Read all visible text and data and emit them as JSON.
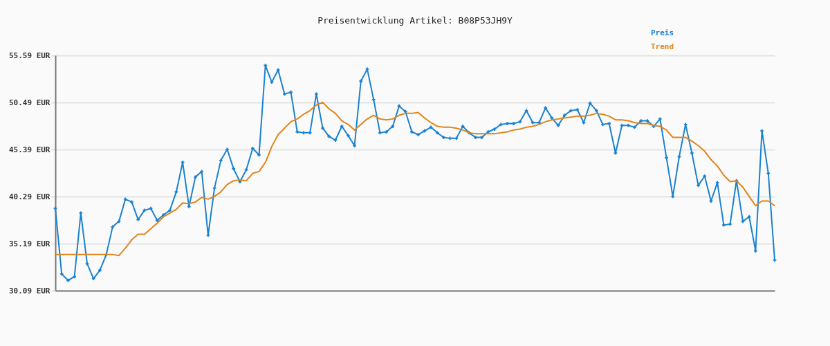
{
  "chart_data": {
    "type": "line",
    "title": "Preisentwicklung Artikel: B08P53JH9Y",
    "categories": [
      null,
      null,
      null,
      null,
      null,
      null,
      null,
      null,
      null,
      null,
      null,
      null,
      null,
      null,
      null,
      null,
      null,
      null,
      null,
      null,
      null,
      null,
      null,
      null,
      null,
      null,
      null,
      null,
      null,
      null,
      null,
      null,
      null,
      null,
      null,
      null,
      null,
      null,
      null,
      null,
      null,
      null,
      null,
      null,
      null,
      null,
      null,
      null,
      null,
      null,
      null,
      null,
      null,
      null,
      null,
      null,
      null,
      null,
      null,
      null,
      null,
      null,
      null,
      null,
      null,
      null,
      null,
      null,
      null,
      null,
      null,
      null,
      null,
      null,
      null,
      null,
      null,
      null,
      null,
      null,
      null,
      null,
      null,
      null,
      null,
      null,
      null,
      null,
      null,
      null,
      null,
      null,
      null,
      null,
      null,
      null,
      null,
      null,
      null,
      null,
      null,
      null,
      null,
      null,
      null,
      null,
      null,
      null,
      null,
      null,
      null,
      null,
      null,
      null
    ],
    "series": [
      {
        "name": "Preis",
        "color": "#1b82cf",
        "marker": "cross",
        "values": [
          39.0,
          31.9,
          31.2,
          31.6,
          38.5,
          33.0,
          31.4,
          32.3,
          34.0,
          37.0,
          37.6,
          40.0,
          39.7,
          37.8,
          38.8,
          39.0,
          37.7,
          38.3,
          38.8,
          40.8,
          44.0,
          39.2,
          42.4,
          43.0,
          36.1,
          41.2,
          44.2,
          45.4,
          43.3,
          41.9,
          43.2,
          45.5,
          44.8,
          54.5,
          52.7,
          54.0,
          51.4,
          51.6,
          47.3,
          47.2,
          47.2,
          51.4,
          47.7,
          46.8,
          46.4,
          47.9,
          46.9,
          45.8,
          52.8,
          54.1,
          50.8,
          47.2,
          47.3,
          47.9,
          50.1,
          49.5,
          47.3,
          47.0,
          47.4,
          47.8,
          47.2,
          46.7,
          46.6,
          46.6,
          47.9,
          47.2,
          46.7,
          46.7,
          47.3,
          47.6,
          48.1,
          48.2,
          48.2,
          48.4,
          49.6,
          48.3,
          48.3,
          49.9,
          48.8,
          48.0,
          49.1,
          49.6,
          49.7,
          48.3,
          50.4,
          49.6,
          48.1,
          48.2,
          45.0,
          48.0,
          48.0,
          47.8,
          48.5,
          48.5,
          47.9,
          48.7,
          44.5,
          40.3,
          44.6,
          48.1,
          45.0,
          41.5,
          42.5,
          39.8,
          41.8,
          37.2,
          37.3,
          42.0,
          37.6,
          38.1,
          34.4,
          47.4,
          42.8,
          33.4
        ]
      },
      {
        "name": "Trend",
        "color": "#e08417",
        "marker": "none",
        "values": [
          34.0,
          34.0,
          34.0,
          34.0,
          34.0,
          34.0,
          34.0,
          34.0,
          34.0,
          34.0,
          33.9,
          34.7,
          35.6,
          36.2,
          36.2,
          36.8,
          37.4,
          38.1,
          38.5,
          38.9,
          39.6,
          39.5,
          39.7,
          40.2,
          40.0,
          40.3,
          40.8,
          41.6,
          42.0,
          42.1,
          42.0,
          42.8,
          43.0,
          44.0,
          45.7,
          47.0,
          47.7,
          48.4,
          48.7,
          49.2,
          49.6,
          50.2,
          50.5,
          49.8,
          49.3,
          48.5,
          48.1,
          47.5,
          48.1,
          48.7,
          49.1,
          48.7,
          48.6,
          48.7,
          49.1,
          49.3,
          49.3,
          49.4,
          48.8,
          48.3,
          47.9,
          47.8,
          47.8,
          47.7,
          47.5,
          47.2,
          47.1,
          47.1,
          47.1,
          47.1,
          47.2,
          47.3,
          47.5,
          47.6,
          47.8,
          47.9,
          48.1,
          48.4,
          48.6,
          48.7,
          48.8,
          48.9,
          49.0,
          49.0,
          49.1,
          49.3,
          49.2,
          49.0,
          48.6,
          48.6,
          48.5,
          48.3,
          48.2,
          48.2,
          48.0,
          47.9,
          47.5,
          46.7,
          46.7,
          46.7,
          46.3,
          45.8,
          45.2,
          44.3,
          43.6,
          42.6,
          41.9,
          42.0,
          41.3,
          40.3,
          39.3,
          39.8,
          39.8,
          39.3
        ]
      }
    ],
    "ylim": [
      30.09,
      55.59
    ],
    "yticks": [
      {
        "value": 30.09,
        "label": "30.09 EUR"
      },
      {
        "value": 35.19,
        "label": "35.19 EUR"
      },
      {
        "value": 40.29,
        "label": "40.29 EUR"
      },
      {
        "value": 45.39,
        "label": "45.39 EUR"
      },
      {
        "value": 50.49,
        "label": "50.49 EUR"
      },
      {
        "value": 55.59,
        "label": "55.59 EUR"
      }
    ],
    "grid": "y",
    "legend": "top right",
    "tick_labels": "y",
    "line_style": "solid"
  }
}
